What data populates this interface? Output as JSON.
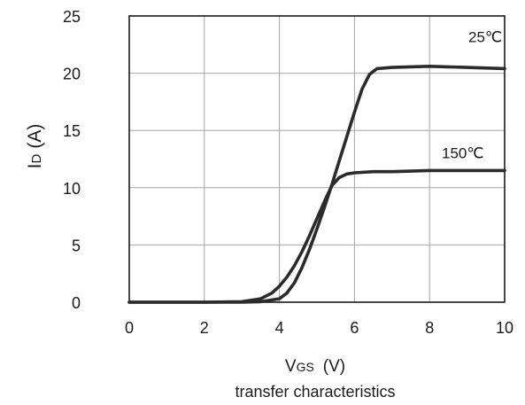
{
  "chart_data": {
    "type": "line",
    "xlabel": {
      "main": "V",
      "sub": "GS",
      "unit": "(V)"
    },
    "ylabel": {
      "main": "I",
      "sub": "D",
      "unit": "(A)"
    },
    "caption": "transfer characteristics",
    "xlim": [
      0,
      10
    ],
    "ylim": [
      0,
      25
    ],
    "xticks": [
      0,
      2,
      4,
      6,
      8,
      10
    ],
    "yticks": [
      0,
      5,
      10,
      15,
      20,
      25
    ],
    "grid": true,
    "series": [
      {
        "name": "25℃",
        "x": [
          0,
          2,
          3,
          3.5,
          4,
          4.2,
          4.4,
          4.6,
          4.8,
          5.0,
          5.2,
          5.4,
          5.6,
          5.8,
          6.0,
          6.2,
          6.4,
          6.6,
          7.0,
          8.0,
          9.0,
          10.0
        ],
        "y": [
          0,
          0,
          0,
          0.05,
          0.3,
          0.8,
          1.7,
          3.0,
          4.6,
          6.4,
          8.3,
          10.3,
          12.4,
          14.5,
          16.6,
          18.6,
          19.9,
          20.4,
          20.5,
          20.6,
          20.5,
          20.4
        ]
      },
      {
        "name": "150℃",
        "x": [
          0,
          2,
          3,
          3.5,
          3.8,
          4.0,
          4.2,
          4.4,
          4.6,
          4.8,
          5.0,
          5.2,
          5.4,
          5.6,
          5.8,
          6.0,
          6.5,
          7.0,
          8.0,
          9.0,
          10.0
        ],
        "y": [
          0,
          0,
          0.05,
          0.3,
          0.8,
          1.4,
          2.2,
          3.2,
          4.4,
          5.8,
          7.3,
          8.8,
          10.2,
          10.9,
          11.2,
          11.3,
          11.4,
          11.4,
          11.5,
          11.5,
          11.5
        ]
      }
    ]
  }
}
